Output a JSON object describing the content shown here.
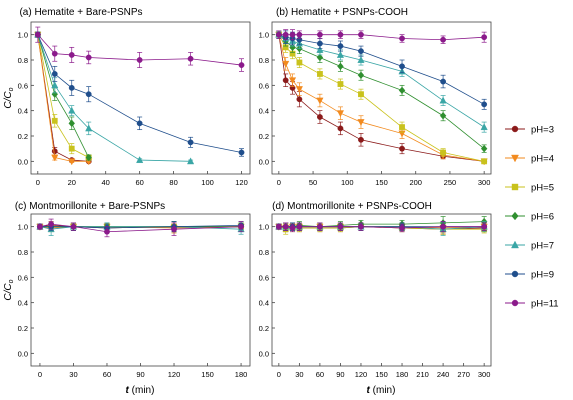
{
  "figure": {
    "ylabel": "C/C",
    "ylabel_sub": "o",
    "xlabel_var": "t",
    "xlabel_unit": " (min)"
  },
  "legend": {
    "placement": "right",
    "items": [
      {
        "label": "pH=3",
        "color": "#8b1a1a",
        "marker": "circle"
      },
      {
        "label": "pH=4",
        "color": "#f28a1e",
        "marker": "triangle-down"
      },
      {
        "label": "pH=5",
        "color": "#c9c21c",
        "marker": "square"
      },
      {
        "label": "pH=6",
        "color": "#2f8f2f",
        "marker": "diamond"
      },
      {
        "label": "pH=7",
        "color": "#3aa6a6",
        "marker": "triangle-up"
      },
      {
        "label": "pH=9",
        "color": "#1f4e8c",
        "marker": "hexagon"
      },
      {
        "label": "pH=11",
        "color": "#8b1a8b",
        "marker": "circle"
      }
    ]
  },
  "chart_data": [
    {
      "type": "scatter",
      "title": "(a) Hematite + Bare-PSNPs",
      "xlim": [
        -4,
        125
      ],
      "ylim": [
        -0.1,
        1.1
      ],
      "xticks": [
        0,
        20,
        40,
        60,
        80,
        100,
        120
      ],
      "yticks": [
        0.0,
        0.2,
        0.4,
        0.6,
        0.8,
        1.0
      ],
      "grid": false,
      "series": [
        {
          "name": "pH=3",
          "x": [
            0,
            10,
            20,
            30
          ],
          "y": [
            1.0,
            0.08,
            0.01,
            0.0
          ],
          "err": [
            0.02,
            0.03,
            0.01,
            0.01
          ]
        },
        {
          "name": "pH=4",
          "x": [
            0,
            10,
            20,
            30
          ],
          "y": [
            1.0,
            0.03,
            0.0,
            0.0
          ],
          "err": [
            0.02,
            0.02,
            0.01,
            0.01
          ]
        },
        {
          "name": "pH=5",
          "x": [
            0,
            10,
            20,
            30
          ],
          "y": [
            1.0,
            0.32,
            0.1,
            0.03
          ],
          "err": [
            0.02,
            0.05,
            0.04,
            0.02
          ]
        },
        {
          "name": "pH=6",
          "x": [
            0,
            10,
            20,
            30
          ],
          "y": [
            1.0,
            0.53,
            0.3,
            0.03
          ],
          "err": [
            0.02,
            0.05,
            0.05,
            0.02
          ]
        },
        {
          "name": "pH=7",
          "x": [
            0,
            10,
            20,
            30,
            60,
            90
          ],
          "y": [
            1.0,
            0.6,
            0.4,
            0.26,
            0.01,
            0.0
          ],
          "err": [
            0.02,
            0.06,
            0.04,
            0.05,
            0.01,
            0.01
          ]
        },
        {
          "name": "pH=9",
          "x": [
            0,
            10,
            20,
            30,
            60,
            90,
            120
          ],
          "y": [
            1.0,
            0.69,
            0.58,
            0.53,
            0.3,
            0.15,
            0.07
          ],
          "err": [
            0.02,
            0.06,
            0.06,
            0.06,
            0.05,
            0.04,
            0.03
          ]
        },
        {
          "name": "pH=11",
          "x": [
            0,
            10,
            20,
            30,
            60,
            90,
            120
          ],
          "y": [
            1.0,
            0.85,
            0.84,
            0.82,
            0.8,
            0.81,
            0.76
          ],
          "err": [
            0.06,
            0.06,
            0.06,
            0.05,
            0.06,
            0.05,
            0.05
          ]
        }
      ]
    },
    {
      "type": "scatter",
      "title": "(b) Hematite + PSNPs-COOH",
      "xlim": [
        -10,
        310
      ],
      "ylim": [
        -0.1,
        1.1
      ],
      "xticks": [
        0,
        50,
        100,
        150,
        200,
        250,
        300
      ],
      "yticks": [
        0.0,
        0.2,
        0.4,
        0.6,
        0.8,
        1.0
      ],
      "grid": false,
      "series": [
        {
          "name": "pH=3",
          "x": [
            0,
            10,
            20,
            30,
            60,
            90,
            120,
            180,
            240,
            300
          ],
          "y": [
            1.0,
            0.64,
            0.58,
            0.49,
            0.35,
            0.26,
            0.17,
            0.1,
            0.04,
            0.0
          ],
          "err": [
            0.02,
            0.05,
            0.05,
            0.06,
            0.05,
            0.05,
            0.05,
            0.04,
            0.02,
            0.01
          ]
        },
        {
          "name": "pH=4",
          "x": [
            0,
            10,
            20,
            30,
            60,
            90,
            120,
            180,
            240,
            300
          ],
          "y": [
            1.0,
            0.77,
            0.64,
            0.57,
            0.48,
            0.38,
            0.31,
            0.22,
            0.05,
            0.0
          ],
          "err": [
            0.02,
            0.05,
            0.05,
            0.05,
            0.05,
            0.05,
            0.05,
            0.04,
            0.03,
            0.01
          ]
        },
        {
          "name": "pH=5",
          "x": [
            0,
            10,
            20,
            30,
            60,
            90,
            120,
            180,
            240,
            300
          ],
          "y": [
            1.0,
            0.9,
            0.85,
            0.78,
            0.69,
            0.61,
            0.53,
            0.27,
            0.07,
            0.0
          ],
          "err": [
            0.02,
            0.04,
            0.04,
            0.04,
            0.04,
            0.04,
            0.04,
            0.04,
            0.03,
            0.01
          ]
        },
        {
          "name": "pH=6",
          "x": [
            0,
            10,
            20,
            30,
            60,
            90,
            120,
            180,
            240,
            300
          ],
          "y": [
            1.0,
            0.95,
            0.9,
            0.89,
            0.82,
            0.75,
            0.68,
            0.56,
            0.36,
            0.1
          ],
          "err": [
            0.02,
            0.04,
            0.04,
            0.04,
            0.04,
            0.04,
            0.04,
            0.04,
            0.04,
            0.03
          ]
        },
        {
          "name": "pH=7",
          "x": [
            0,
            10,
            20,
            30,
            60,
            90,
            120,
            180,
            240,
            300
          ],
          "y": [
            1.0,
            0.97,
            0.95,
            0.93,
            0.88,
            0.84,
            0.8,
            0.71,
            0.48,
            0.27
          ],
          "err": [
            0.02,
            0.04,
            0.04,
            0.04,
            0.04,
            0.04,
            0.04,
            0.04,
            0.04,
            0.04
          ]
        },
        {
          "name": "pH=9",
          "x": [
            0,
            10,
            20,
            30,
            60,
            90,
            120,
            180,
            240,
            300
          ],
          "y": [
            1.0,
            0.98,
            0.97,
            0.96,
            0.93,
            0.91,
            0.87,
            0.75,
            0.63,
            0.45
          ],
          "err": [
            0.03,
            0.05,
            0.05,
            0.04,
            0.04,
            0.04,
            0.04,
            0.05,
            0.05,
            0.04
          ]
        },
        {
          "name": "pH=11",
          "x": [
            0,
            10,
            20,
            30,
            60,
            90,
            120,
            180,
            240,
            300
          ],
          "y": [
            1.0,
            1.0,
            1.0,
            1.0,
            1.0,
            1.0,
            1.0,
            0.97,
            0.96,
            0.98
          ],
          "err": [
            0.03,
            0.04,
            0.04,
            0.03,
            0.03,
            0.03,
            0.03,
            0.03,
            0.03,
            0.04
          ]
        }
      ]
    },
    {
      "type": "scatter",
      "title": "(c) Montmorillonite + Bare-PSNPs",
      "xlim": [
        -8,
        188
      ],
      "ylim": [
        -0.1,
        1.1
      ],
      "xticks": [
        0,
        30,
        60,
        90,
        120,
        150,
        180
      ],
      "yticks": [
        0.0,
        0.2,
        0.4,
        0.6,
        0.8,
        1.0
      ],
      "grid": false,
      "series": [
        {
          "name": "pH=3",
          "x": [
            0,
            10,
            30,
            60,
            120,
            180
          ],
          "y": [
            1.0,
            1.01,
            1.0,
            0.99,
            1.0,
            1.0
          ],
          "err": [
            0.02,
            0.03,
            0.03,
            0.03,
            0.04,
            0.03
          ]
        },
        {
          "name": "pH=4",
          "x": [
            0,
            10,
            30,
            60,
            120,
            180
          ],
          "y": [
            1.0,
            0.99,
            1.0,
            1.0,
            0.99,
            1.0
          ],
          "err": [
            0.02,
            0.03,
            0.03,
            0.03,
            0.04,
            0.03
          ]
        },
        {
          "name": "pH=5",
          "x": [
            0,
            10,
            30,
            60,
            120,
            180
          ],
          "y": [
            1.0,
            1.0,
            1.0,
            1.0,
            1.0,
            1.0
          ],
          "err": [
            0.02,
            0.03,
            0.03,
            0.03,
            0.04,
            0.03
          ]
        },
        {
          "name": "pH=6",
          "x": [
            0,
            10,
            30,
            60,
            120,
            180
          ],
          "y": [
            1.0,
            1.0,
            1.0,
            1.0,
            1.0,
            1.0
          ],
          "err": [
            0.02,
            0.03,
            0.03,
            0.03,
            0.04,
            0.03
          ]
        },
        {
          "name": "pH=7",
          "x": [
            0,
            10,
            30,
            60,
            120,
            180
          ],
          "y": [
            1.0,
            0.98,
            1.0,
            1.0,
            1.0,
            0.98
          ],
          "err": [
            0.02,
            0.05,
            0.03,
            0.03,
            0.04,
            0.04
          ]
        },
        {
          "name": "pH=9",
          "x": [
            0,
            10,
            30,
            60,
            120,
            180
          ],
          "y": [
            1.0,
            1.0,
            1.0,
            0.99,
            1.0,
            1.01
          ],
          "err": [
            0.02,
            0.03,
            0.03,
            0.03,
            0.04,
            0.03
          ]
        },
        {
          "name": "pH=11",
          "x": [
            0,
            10,
            30,
            60,
            120,
            180
          ],
          "y": [
            1.0,
            1.02,
            1.0,
            0.96,
            0.98,
            1.0
          ],
          "err": [
            0.02,
            0.04,
            0.03,
            0.04,
            0.05,
            0.04
          ]
        }
      ]
    },
    {
      "type": "scatter",
      "title": "(d) Montmorillonite + PSNPs-COOH",
      "xlim": [
        -10,
        310
      ],
      "ylim": [
        -0.1,
        1.1
      ],
      "xticks": [
        0,
        30,
        60,
        90,
        120,
        150,
        180,
        210,
        240,
        270,
        300
      ],
      "yticks": [
        0.0,
        0.2,
        0.4,
        0.6,
        0.8,
        1.0
      ],
      "grid": false,
      "series": [
        {
          "name": "pH=3",
          "x": [
            0,
            10,
            20,
            30,
            60,
            90,
            120,
            180,
            240,
            300
          ],
          "y": [
            1.0,
            0.99,
            1.0,
            0.99,
            0.99,
            0.99,
            1.0,
            0.99,
            0.98,
            0.99
          ],
          "err": [
            0.02,
            0.03,
            0.03,
            0.03,
            0.03,
            0.03,
            0.03,
            0.03,
            0.04,
            0.03
          ]
        },
        {
          "name": "pH=4",
          "x": [
            0,
            10,
            20,
            30,
            60,
            90,
            120,
            180,
            240,
            300
          ],
          "y": [
            1.0,
            0.99,
            1.0,
            1.0,
            1.0,
            1.0,
            1.0,
            1.0,
            0.99,
            1.0
          ],
          "err": [
            0.02,
            0.03,
            0.03,
            0.03,
            0.03,
            0.03,
            0.03,
            0.03,
            0.04,
            0.03
          ]
        },
        {
          "name": "pH=5",
          "x": [
            0,
            10,
            20,
            30,
            60,
            90,
            120,
            180,
            240,
            300
          ],
          "y": [
            1.0,
            0.98,
            0.99,
            0.99,
            0.99,
            0.99,
            1.0,
            0.99,
            0.98,
            0.98
          ],
          "err": [
            0.02,
            0.04,
            0.03,
            0.03,
            0.03,
            0.03,
            0.03,
            0.03,
            0.04,
            0.03
          ]
        },
        {
          "name": "pH=6",
          "x": [
            0,
            10,
            20,
            30,
            60,
            90,
            120,
            180,
            240,
            300
          ],
          "y": [
            1.0,
            1.0,
            1.0,
            1.01,
            1.0,
            1.01,
            1.02,
            1.02,
            1.03,
            1.04
          ],
          "err": [
            0.02,
            0.03,
            0.03,
            0.03,
            0.03,
            0.03,
            0.03,
            0.03,
            0.05,
            0.04
          ]
        },
        {
          "name": "pH=7",
          "x": [
            0,
            10,
            20,
            30,
            60,
            90,
            120,
            180,
            240,
            300
          ],
          "y": [
            1.0,
            1.0,
            1.0,
            1.0,
            1.0,
            1.0,
            1.0,
            1.0,
            0.98,
            1.0
          ],
          "err": [
            0.02,
            0.03,
            0.03,
            0.03,
            0.03,
            0.03,
            0.03,
            0.03,
            0.05,
            0.04
          ]
        },
        {
          "name": "pH=9",
          "x": [
            0,
            10,
            20,
            30,
            60,
            90,
            120,
            180,
            240,
            300
          ],
          "y": [
            1.0,
            1.0,
            1.0,
            1.0,
            1.0,
            1.0,
            1.0,
            1.0,
            1.0,
            1.0
          ],
          "err": [
            0.02,
            0.03,
            0.03,
            0.03,
            0.03,
            0.03,
            0.03,
            0.03,
            0.04,
            0.03
          ]
        },
        {
          "name": "pH=11",
          "x": [
            0,
            10,
            20,
            30,
            60,
            90,
            120,
            180,
            240,
            300
          ],
          "y": [
            1.0,
            1.0,
            0.99,
            1.0,
            1.0,
            1.0,
            1.0,
            0.99,
            1.0,
            1.0
          ],
          "err": [
            0.02,
            0.03,
            0.03,
            0.03,
            0.03,
            0.03,
            0.03,
            0.03,
            0.04,
            0.03
          ]
        }
      ]
    }
  ]
}
